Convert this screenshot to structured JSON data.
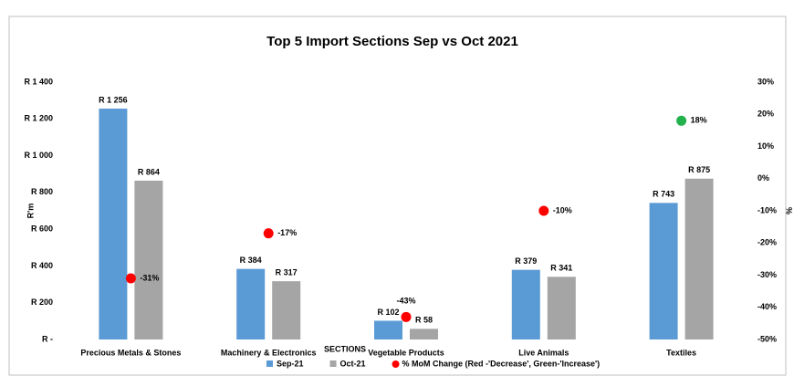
{
  "chart_data": {
    "type": "bar",
    "title": "Top 5 Import Sections Sep vs Oct 2021",
    "xlabel": "SECTIONS",
    "ylabel": "R'm",
    "y2label": "%",
    "categories": [
      "Precious Metals & Stones",
      "Machinery & Electronics",
      "Vegetable Products",
      "Live Animals",
      "Textiles"
    ],
    "series": [
      {
        "name": "Sep-21",
        "color": "#5b9bd5",
        "values": [
          1256,
          384,
          102,
          379,
          743
        ],
        "value_labels": [
          "R 1 256",
          "R 384",
          "R 102",
          "R 379",
          "R 743"
        ]
      },
      {
        "name": "Oct-21",
        "color": "#a5a5a5",
        "values": [
          864,
          317,
          58,
          341,
          875
        ],
        "value_labels": [
          "R 864",
          "R 317",
          "R 58",
          "R 341",
          "R 875"
        ]
      },
      {
        "name": "% MoM Change (Red -'Decrease', Green-'Increase')",
        "type": "scatter",
        "axis": "y2",
        "color": "#ff0000",
        "colors": [
          "#ff0000",
          "#ff0000",
          "#ff0000",
          "#ff0000",
          "#22b14c"
        ],
        "values": [
          -31,
          -17,
          -43,
          -10,
          18
        ],
        "value_labels": [
          "-31%",
          "-17%",
          "-43%",
          "-10%",
          "18%"
        ]
      }
    ],
    "ylim": [
      0,
      1400
    ],
    "yticks": [
      {
        "value": 0,
        "label": "R -"
      },
      {
        "value": 200,
        "label": "R 200"
      },
      {
        "value": 400,
        "label": "R 400"
      },
      {
        "value": 600,
        "label": "R 600"
      },
      {
        "value": 800,
        "label": "R 800"
      },
      {
        "value": 1000,
        "label": "R 1 000"
      },
      {
        "value": 1200,
        "label": "R 1 200"
      },
      {
        "value": 1400,
        "label": "R 1 400"
      }
    ],
    "y2lim": [
      -50,
      30
    ],
    "y2ticks": [
      {
        "value": -50,
        "label": "-50%"
      },
      {
        "value": -40,
        "label": "-40%"
      },
      {
        "value": -30,
        "label": "-30%"
      },
      {
        "value": -20,
        "label": "-20%"
      },
      {
        "value": -10,
        "label": "-10%"
      },
      {
        "value": 0,
        "label": "0%"
      },
      {
        "value": 10,
        "label": "10%"
      },
      {
        "value": 20,
        "label": "20%"
      },
      {
        "value": 30,
        "label": "30%"
      }
    ]
  }
}
